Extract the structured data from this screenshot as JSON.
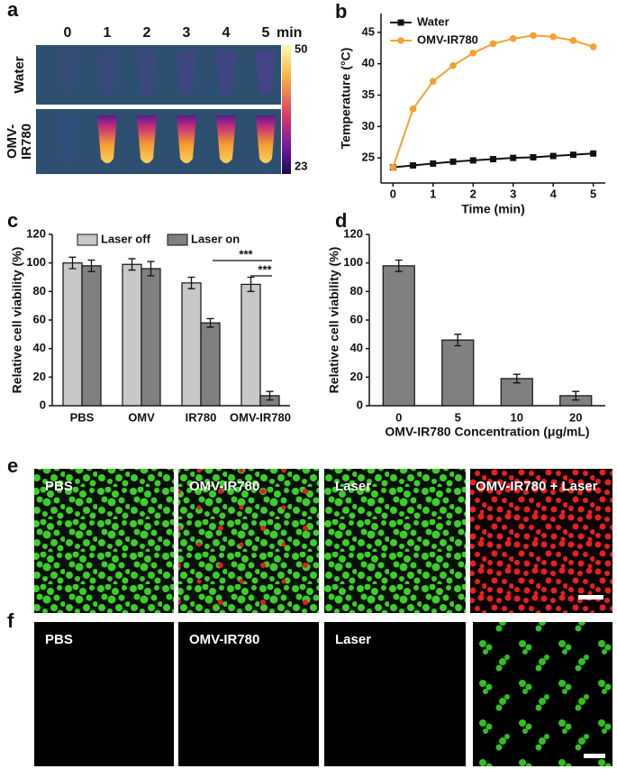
{
  "panel_labels": [
    "a",
    "b",
    "c",
    "d",
    "e",
    "f"
  ],
  "thermal": {
    "times": [
      0,
      1,
      2,
      3,
      4,
      5
    ],
    "time_unit": "min",
    "rows": [
      {
        "lines": [
          "Water"
        ]
      },
      {
        "lines": [
          "OMV-",
          "IR780"
        ]
      }
    ],
    "colorbar": {
      "max": 50,
      "min": 23
    }
  },
  "chart_data": [
    {
      "type": "line",
      "xlabel": "Time (min)",
      "ylabel": "Temperature (°C)",
      "x": [
        0,
        0.5,
        1,
        1.5,
        2,
        2.5,
        3,
        3.5,
        4,
        4.5,
        5
      ],
      "series": [
        {
          "name": "Water",
          "color": "#111111",
          "marker": "square",
          "values": [
            23.5,
            23.8,
            24.1,
            24.4,
            24.6,
            24.8,
            25.0,
            25.1,
            25.3,
            25.5,
            25.7
          ]
        },
        {
          "name": "OMV-IR780",
          "color": "#f5a032",
          "marker": "circle",
          "values": [
            23.5,
            32.8,
            37.2,
            39.7,
            41.7,
            43.2,
            44.0,
            44.5,
            44.3,
            43.7,
            42.7
          ]
        }
      ],
      "xlim": [
        -0.3,
        5.3
      ],
      "xticks": [
        0,
        1,
        2,
        3,
        4,
        5
      ],
      "ylim": [
        21,
        48
      ],
      "yticks": [
        25,
        30,
        35,
        40,
        45
      ],
      "legend": "upper left"
    },
    {
      "type": "bar",
      "ylabel": "Relative cell viability (%)",
      "categories": [
        "PBS",
        "OMV",
        "IR780",
        "OMV-IR780"
      ],
      "series": [
        {
          "name": "Laser off",
          "color": "#c8c8c8",
          "values": [
            100,
            99,
            86,
            85
          ],
          "errors": [
            4,
            4,
            4,
            5
          ]
        },
        {
          "name": "Laser on",
          "color": "#808080",
          "values": [
            98,
            96,
            58,
            7
          ],
          "errors": [
            4,
            5,
            3,
            3
          ]
        }
      ],
      "ylim": [
        0,
        120
      ],
      "yticks": [
        0,
        20,
        40,
        60,
        80,
        100,
        120
      ],
      "legend": "upper center",
      "annotations": [
        "***",
        "***"
      ]
    },
    {
      "type": "bar",
      "ylabel": "Relative cell viability (%)",
      "xlabel": "OMV-IR780 Concentration (μg/mL)",
      "categories": [
        "0",
        "5",
        "10",
        "20"
      ],
      "series": [
        {
          "color": "#808080",
          "values": [
            98,
            46,
            19,
            7
          ],
          "errors": [
            4,
            4,
            3,
            3
          ]
        }
      ],
      "ylim": [
        0,
        120
      ],
      "yticks": [
        0,
        20,
        40,
        60,
        80,
        100,
        120
      ]
    }
  ],
  "live_dead": {
    "labels": [
      "PBS",
      "OMV-IR780",
      "Laser",
      "OMV-IR780 + Laser"
    ]
  },
  "ros": {
    "labels": [
      "PBS",
      "OMV-IR780",
      "Laser"
    ]
  }
}
